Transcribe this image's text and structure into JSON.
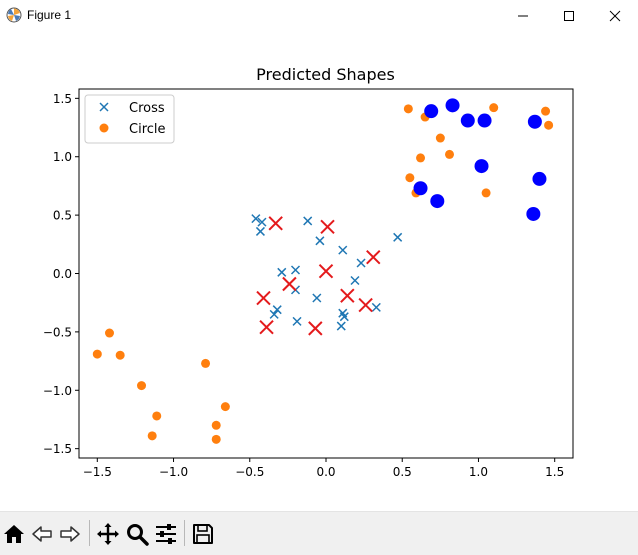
{
  "window": {
    "title": "Figure 1",
    "icons": [
      "matplotlib-icon",
      "minimize-icon",
      "maximize-icon",
      "close-icon"
    ]
  },
  "toolbar": {
    "buttons": [
      "home-icon",
      "back-icon",
      "forward-icon",
      "pan-icon",
      "zoom-icon",
      "configure-subplots-icon",
      "save-icon"
    ]
  },
  "chart_data": {
    "type": "scatter",
    "title": "Predicted Shapes",
    "xlabel": "",
    "ylabel": "",
    "xlim": [
      -1.62,
      1.62
    ],
    "ylim": [
      -1.58,
      1.58
    ],
    "xticks": [
      "−1.5",
      "−1.0",
      "−0.5",
      "0.0",
      "0.5",
      "1.0",
      "1.5"
    ],
    "yticks": [
      "1.5",
      "1.0",
      "0.5",
      "0.0",
      "−0.5",
      "−1.0",
      "−1.5"
    ],
    "xtick_values": [
      -1.5,
      -1.0,
      -0.5,
      0.0,
      0.5,
      1.0,
      1.5
    ],
    "ytick_values": [
      1.5,
      1.0,
      0.5,
      0.0,
      -0.5,
      -1.0,
      -1.5
    ],
    "grid": false,
    "legend_position": "top-left",
    "legend": [
      {
        "label": "Cross",
        "marker": "x",
        "color": "#1f77b4"
      },
      {
        "label": "Circle",
        "marker": "o",
        "color": "#ff7f0e"
      }
    ],
    "colors": {
      "cross": "#1f77b4",
      "circle": "#ff7f0e",
      "predicted_cross": "#e41a1c",
      "predicted_circle": "#0000ff"
    },
    "series": [
      {
        "name": "Cross",
        "marker": "x",
        "color": "#1f77b4",
        "points": [
          [
            -0.46,
            0.47
          ],
          [
            -0.42,
            0.44
          ],
          [
            -0.43,
            0.36
          ],
          [
            -0.12,
            0.45
          ],
          [
            -0.04,
            0.28
          ],
          [
            0.11,
            0.2
          ],
          [
            0.47,
            0.31
          ],
          [
            0.23,
            0.09
          ],
          [
            0.19,
            -0.06
          ],
          [
            -0.29,
            0.01
          ],
          [
            -0.2,
            0.03
          ],
          [
            -0.2,
            -0.14
          ],
          [
            -0.32,
            -0.31
          ],
          [
            -0.34,
            -0.35
          ],
          [
            -0.06,
            -0.21
          ],
          [
            0.11,
            -0.34
          ],
          [
            0.12,
            -0.37
          ],
          [
            0.1,
            -0.45
          ],
          [
            0.33,
            -0.29
          ],
          [
            -0.19,
            -0.41
          ]
        ]
      },
      {
        "name": "Circle",
        "marker": "o",
        "color": "#ff7f0e",
        "points": [
          [
            0.54,
            1.41
          ],
          [
            0.65,
            1.34
          ],
          [
            0.75,
            1.16
          ],
          [
            1.1,
            1.42
          ],
          [
            1.44,
            1.39
          ],
          [
            1.46,
            1.27
          ],
          [
            0.62,
            0.99
          ],
          [
            0.81,
            1.02
          ],
          [
            0.55,
            0.82
          ],
          [
            0.59,
            0.69
          ],
          [
            1.05,
            0.69
          ],
          [
            -1.42,
            -0.51
          ],
          [
            -1.5,
            -0.69
          ],
          [
            -1.35,
            -0.7
          ],
          [
            -1.21,
            -0.96
          ],
          [
            -0.79,
            -0.77
          ],
          [
            -1.11,
            -1.22
          ],
          [
            -1.14,
            -1.39
          ],
          [
            -0.66,
            -1.14
          ],
          [
            -0.72,
            -1.3
          ],
          [
            -0.72,
            -1.42
          ]
        ]
      },
      {
        "name": "predicted-cross",
        "marker": "x-large",
        "color": "#e41a1c",
        "points": [
          [
            -0.33,
            0.43
          ],
          [
            0.01,
            0.4
          ],
          [
            0.31,
            0.14
          ],
          [
            0.0,
            0.02
          ],
          [
            -0.24,
            -0.09
          ],
          [
            -0.41,
            -0.21
          ],
          [
            0.14,
            -0.19
          ],
          [
            0.26,
            -0.27
          ],
          [
            -0.39,
            -0.46
          ],
          [
            -0.07,
            -0.47
          ]
        ]
      },
      {
        "name": "predicted-circle",
        "marker": "o-large",
        "color": "#0000ff",
        "points": [
          [
            0.69,
            1.39
          ],
          [
            0.83,
            1.44
          ],
          [
            0.93,
            1.31
          ],
          [
            1.04,
            1.31
          ],
          [
            1.37,
            1.3
          ],
          [
            1.02,
            0.92
          ],
          [
            1.4,
            0.81
          ],
          [
            0.62,
            0.73
          ],
          [
            0.73,
            0.62
          ],
          [
            1.36,
            0.51
          ]
        ]
      }
    ]
  }
}
